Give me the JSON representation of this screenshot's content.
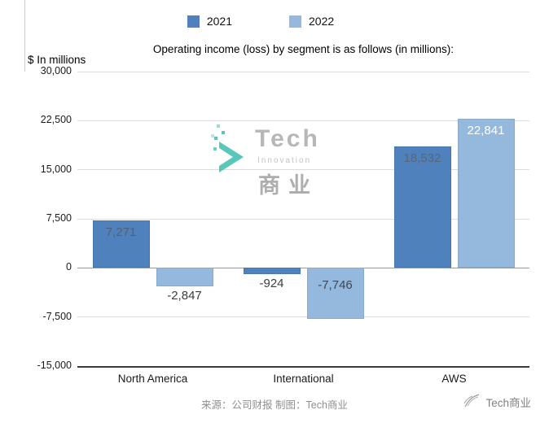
{
  "legend": [
    {
      "label": "2021",
      "color": "#4f81bd"
    },
    {
      "label": "2022",
      "color": "#95b9dd"
    }
  ],
  "chart_data": {
    "type": "bar",
    "title": "Operating income (loss) by segment is as follows (in millions):",
    "ylabel": "$ In millions",
    "categories": [
      "North America",
      "International",
      "AWS"
    ],
    "series": [
      {
        "name": "2021",
        "color": "#4f81bd",
        "values": [
          7271,
          -924,
          18532
        ],
        "labels": [
          "7,271",
          "-924",
          "18,532"
        ],
        "label_colors": [
          "#56606e",
          "#3d3d3d",
          "#5b6573"
        ]
      },
      {
        "name": "2022",
        "color": "#95b9dd",
        "values": [
          -2847,
          -7746,
          22841
        ],
        "labels": [
          "-2,847",
          "-7,746",
          "22,841"
        ],
        "label_colors": [
          "#3d3d3d",
          "#3f4652",
          "#ffffff"
        ]
      }
    ],
    "ylim": [
      -15000,
      30000
    ],
    "ytick_step": 7500,
    "yticks": [
      "30,000",
      "22,500",
      "15,000",
      "7,500",
      "0",
      "-7,500",
      "-15,000"
    ],
    "grid": true,
    "legend_position": "top"
  },
  "watermark": {
    "line1": "Tech",
    "line2": "Innovation",
    "line3": "商业"
  },
  "footer": {
    "source": "来源：公司财报 制图：Tech商业",
    "brand": "Tech商业"
  }
}
